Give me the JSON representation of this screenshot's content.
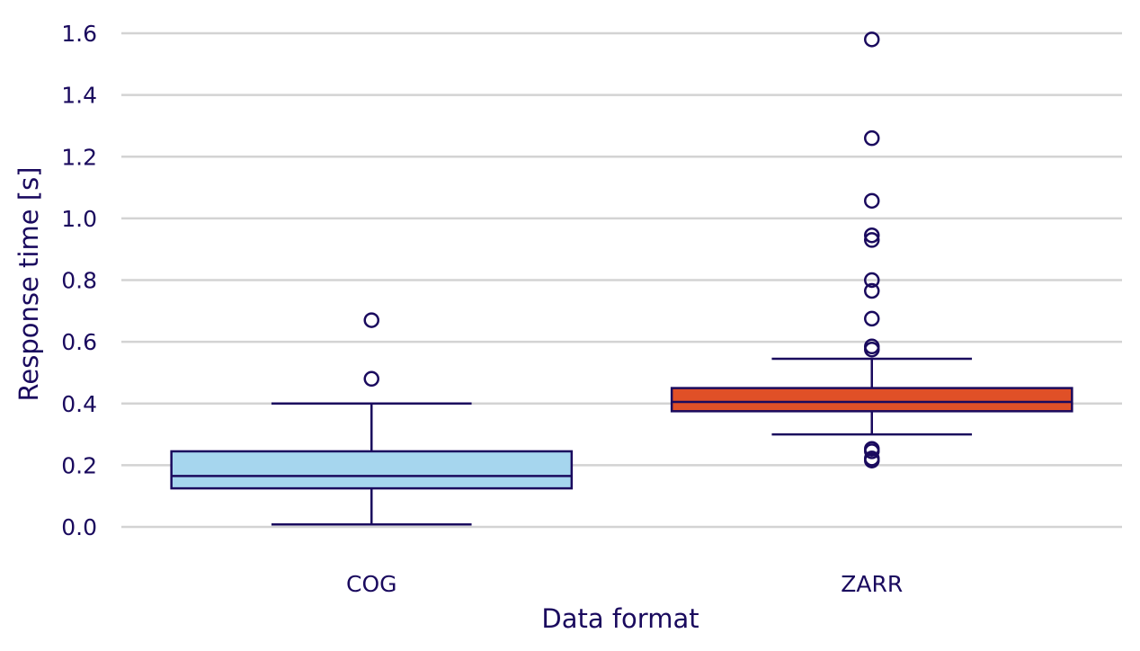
{
  "chart_data": {
    "type": "box",
    "xlabel": "Data format",
    "ylabel": "Response time [s]",
    "ylim": [
      -0.13,
      1.66
    ],
    "yticks": [
      "0.0",
      "0.2",
      "0.4",
      "0.6",
      "0.8",
      "1.0",
      "1.2",
      "1.4",
      "1.6"
    ],
    "ytick_values": [
      0.0,
      0.2,
      0.4,
      0.6,
      0.8,
      1.0,
      1.2,
      1.4,
      1.6
    ],
    "grid": "horizontal",
    "categories": [
      "COG",
      "ZARR"
    ],
    "boxes": [
      {
        "category": "COG",
        "color": "#a6d6ee",
        "whisker_low": 0.008,
        "q1": 0.125,
        "median": 0.165,
        "q3": 0.245,
        "whisker_high": 0.4,
        "outliers": [
          0.48,
          0.67
        ]
      },
      {
        "category": "ZARR",
        "color": "#e05027",
        "whisker_low": 0.3,
        "q1": 0.375,
        "median": 0.405,
        "q3": 0.45,
        "whisker_high": 0.545,
        "outliers": [
          0.215,
          0.222,
          0.245,
          0.253,
          0.575,
          0.585,
          0.675,
          0.765,
          0.8,
          0.93,
          0.945,
          1.057,
          1.26,
          1.58
        ]
      }
    ]
  }
}
